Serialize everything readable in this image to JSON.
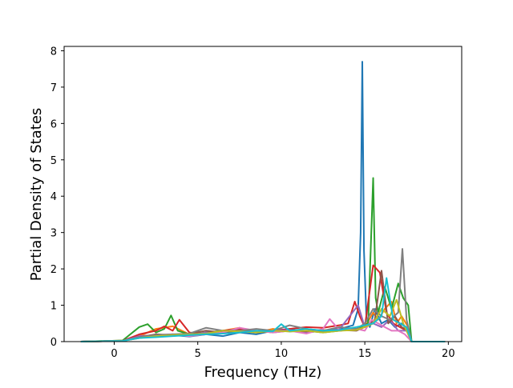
{
  "chart_data": {
    "type": "line",
    "xlabel": "Frequency (THz)",
    "ylabel": "Partial Density of States",
    "xlim": [
      -3.0,
      20.8
    ],
    "ylim": [
      0,
      8.12
    ],
    "x_ticks": [
      0,
      5,
      10,
      15,
      20
    ],
    "y_ticks": [
      0,
      1,
      2,
      3,
      4,
      5,
      6,
      7,
      8
    ],
    "x_tick_labels": [
      "0",
      "5",
      "10",
      "15",
      "20"
    ],
    "y_tick_labels": [
      "0",
      "1",
      "2",
      "3",
      "4",
      "5",
      "6",
      "7",
      "8"
    ],
    "grid": false,
    "legend": "none",
    "series": [
      {
        "color": "#1f77b4",
        "x": [
          -2.0,
          0.5,
          1.5,
          2.5,
          3.5,
          4.5,
          5.5,
          6.5,
          7.5,
          8.5,
          9.5,
          10.5,
          11.5,
          12.5,
          13.5,
          14.3,
          14.6,
          14.75,
          14.85,
          14.95,
          15.1,
          15.3,
          15.6,
          16.0,
          16.4,
          16.8,
          17.2,
          17.6,
          17.8,
          19.8
        ],
        "y": [
          0,
          0.02,
          0.12,
          0.15,
          0.18,
          0.14,
          0.2,
          0.15,
          0.25,
          0.2,
          0.3,
          0.35,
          0.25,
          0.3,
          0.35,
          0.45,
          0.9,
          3.0,
          7.7,
          2.5,
          0.6,
          0.4,
          0.9,
          0.5,
          0.6,
          0.4,
          0.5,
          0.3,
          0,
          0
        ]
      },
      {
        "color": "#ff7f0e",
        "x": [
          -2.0,
          0.5,
          1.5,
          2.5,
          3.5,
          4.5,
          5.5,
          6.5,
          7.5,
          8.5,
          9.5,
          10.5,
          11.5,
          12.5,
          13.5,
          14.5,
          15.0,
          15.5,
          15.8,
          16.2,
          16.6,
          16.9,
          17.2,
          17.6,
          17.8,
          19.8
        ],
        "y": [
          0,
          0.03,
          0.15,
          0.35,
          0.42,
          0.2,
          0.22,
          0.3,
          0.38,
          0.25,
          0.35,
          0.28,
          0.3,
          0.32,
          0.3,
          0.35,
          0.4,
          0.8,
          0.6,
          0.9,
          1.1,
          0.5,
          0.7,
          0.4,
          0,
          0
        ]
      },
      {
        "color": "#2ca02c",
        "x": [
          -2.0,
          0.5,
          1.5,
          2.0,
          2.5,
          3.0,
          3.4,
          3.8,
          4.5,
          5.5,
          6.5,
          7.5,
          8.5,
          9.5,
          10.5,
          11.5,
          12.5,
          13.5,
          14.5,
          15.2,
          15.5,
          15.65,
          15.8,
          16.2,
          16.6,
          17.0,
          17.3,
          17.6,
          17.8,
          19.8
        ],
        "y": [
          0,
          0.03,
          0.4,
          0.48,
          0.25,
          0.35,
          0.72,
          0.3,
          0.2,
          0.25,
          0.3,
          0.32,
          0.25,
          0.3,
          0.28,
          0.3,
          0.25,
          0.3,
          0.35,
          0.5,
          4.5,
          1.2,
          0.8,
          1.5,
          0.9,
          1.6,
          1.2,
          1.0,
          0,
          0
        ]
      },
      {
        "color": "#d62728",
        "x": [
          -2.0,
          0.5,
          1.5,
          2.5,
          3.0,
          3.5,
          3.9,
          4.5,
          5.5,
          6.5,
          7.5,
          8.5,
          9.5,
          10.5,
          11.5,
          12.5,
          13.5,
          14.0,
          14.4,
          14.7,
          15.0,
          15.5,
          15.9,
          16.3,
          16.7,
          17.1,
          17.5,
          17.8,
          19.8
        ],
        "y": [
          0,
          0.02,
          0.2,
          0.3,
          0.42,
          0.3,
          0.6,
          0.25,
          0.2,
          0.3,
          0.35,
          0.25,
          0.3,
          0.35,
          0.4,
          0.38,
          0.45,
          0.5,
          1.1,
          0.7,
          0.4,
          2.1,
          1.9,
          0.8,
          0.5,
          0.4,
          0.3,
          0,
          0
        ]
      },
      {
        "color": "#9467bd",
        "x": [
          -2.0,
          0.5,
          1.5,
          2.5,
          3.5,
          4.5,
          5.5,
          6.5,
          7.5,
          8.5,
          9.5,
          10.5,
          11.5,
          12.5,
          13.5,
          14.6,
          15.0,
          15.5,
          16.0,
          16.5,
          17.0,
          17.5,
          17.8,
          19.8
        ],
        "y": [
          0,
          0.02,
          0.15,
          0.18,
          0.2,
          0.18,
          0.25,
          0.22,
          0.3,
          0.28,
          0.3,
          0.32,
          0.25,
          0.3,
          0.35,
          1.0,
          0.4,
          0.5,
          0.4,
          0.6,
          0.3,
          0.3,
          0,
          0
        ]
      },
      {
        "color": "#8c564b",
        "x": [
          -2.0,
          0.5,
          1.5,
          2.5,
          3.5,
          4.5,
          5.5,
          6.5,
          7.5,
          8.5,
          9.5,
          10.5,
          11.5,
          12.5,
          13.5,
          14.5,
          15.0,
          15.6,
          16.0,
          16.4,
          16.8,
          17.2,
          17.6,
          17.8,
          19.8
        ],
        "y": [
          0,
          0.02,
          0.12,
          0.2,
          0.18,
          0.22,
          0.3,
          0.25,
          0.28,
          0.3,
          0.25,
          0.3,
          0.28,
          0.3,
          0.32,
          0.3,
          0.4,
          0.6,
          1.95,
          0.5,
          0.7,
          0.4,
          0.3,
          0,
          0
        ]
      },
      {
        "color": "#e377c2",
        "x": [
          -2.0,
          0.5,
          1.5,
          2.5,
          3.5,
          4.5,
          5.5,
          6.5,
          7.5,
          8.5,
          9.5,
          10.5,
          11.5,
          12.5,
          12.9,
          13.5,
          14.5,
          15.0,
          15.4,
          15.8,
          16.2,
          16.6,
          17.0,
          17.4,
          17.8,
          19.8
        ],
        "y": [
          0,
          0.02,
          0.1,
          0.15,
          0.2,
          0.15,
          0.2,
          0.25,
          0.38,
          0.3,
          0.25,
          0.3,
          0.22,
          0.35,
          0.62,
          0.3,
          0.35,
          0.3,
          0.6,
          0.5,
          0.4,
          0.3,
          0.3,
          0.2,
          0,
          0
        ]
      },
      {
        "color": "#7f7f7f",
        "x": [
          -2.0,
          0.5,
          1.5,
          2.5,
          3.5,
          4.5,
          5.5,
          6.5,
          7.5,
          8.5,
          9.5,
          10.5,
          11.5,
          12.5,
          13.5,
          14.5,
          15.0,
          15.5,
          16.0,
          16.5,
          17.0,
          17.25,
          17.5,
          17.8,
          19.8
        ],
        "y": [
          0,
          0.02,
          0.12,
          0.18,
          0.2,
          0.22,
          0.38,
          0.3,
          0.3,
          0.35,
          0.3,
          0.45,
          0.35,
          0.3,
          0.4,
          0.35,
          0.5,
          0.9,
          0.7,
          0.6,
          0.8,
          2.55,
          0.6,
          0,
          0
        ]
      },
      {
        "color": "#bcbd22",
        "x": [
          -2.0,
          0.5,
          1.5,
          2.5,
          3.5,
          4.5,
          5.5,
          6.5,
          7.5,
          8.5,
          9.5,
          10.5,
          11.5,
          12.5,
          13.5,
          14.5,
          15.0,
          15.5,
          16.0,
          16.5,
          16.9,
          17.3,
          17.8,
          19.8
        ],
        "y": [
          0,
          0.02,
          0.1,
          0.15,
          0.18,
          0.2,
          0.22,
          0.3,
          0.28,
          0.25,
          0.3,
          0.28,
          0.3,
          0.25,
          0.3,
          0.32,
          0.4,
          0.5,
          0.9,
          0.7,
          1.15,
          0.5,
          0,
          0
        ]
      },
      {
        "color": "#17becf",
        "x": [
          -2.0,
          0.5,
          1.5,
          2.5,
          3.5,
          4.5,
          5.5,
          6.5,
          7.5,
          8.5,
          9.5,
          10.0,
          10.5,
          11.5,
          12.5,
          13.5,
          14.5,
          15.0,
          15.5,
          16.0,
          16.3,
          16.7,
          17.1,
          17.5,
          17.8,
          19.8
        ],
        "y": [
          0,
          0.02,
          0.1,
          0.12,
          0.15,
          0.18,
          0.2,
          0.22,
          0.25,
          0.3,
          0.28,
          0.48,
          0.3,
          0.35,
          0.3,
          0.32,
          0.4,
          0.45,
          0.5,
          0.7,
          1.75,
          0.6,
          0.5,
          0.4,
          0,
          0
        ]
      }
    ]
  }
}
